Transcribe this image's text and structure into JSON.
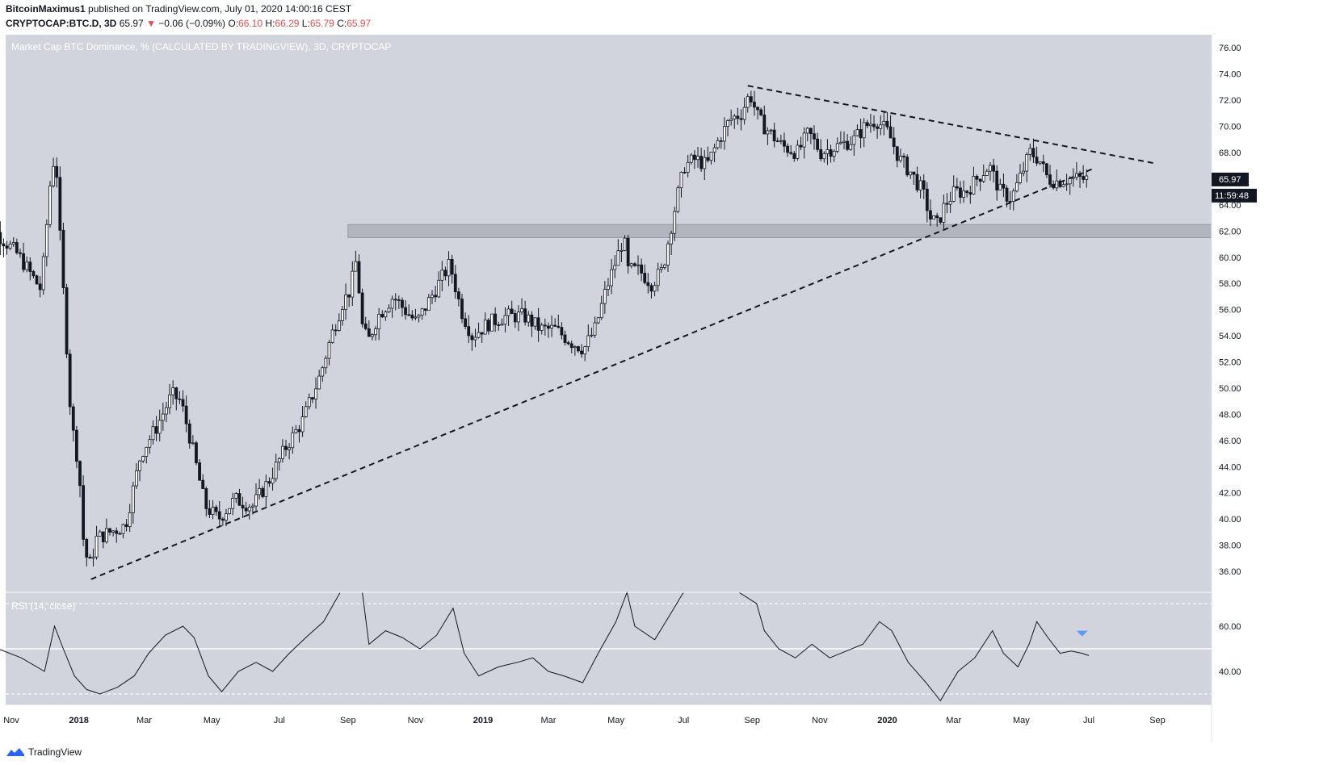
{
  "header": {
    "author": "BitcoinMaximus1",
    "published": "published on TradingView.com, July 01, 2020 14:00:16 CEST",
    "symbol": "CRYPTOCAP:BTC.D, 3D",
    "last": "65.97",
    "change": "−0.06 (−0.09%)",
    "o_label": "O:",
    "o_value": "66.10",
    "h_label": "H:",
    "h_value": "66.29",
    "l_label": "L:",
    "l_value": "65.79",
    "c_label": "C:",
    "c_value": "65.97"
  },
  "footer": {
    "brand": "TradingView"
  },
  "colors": {
    "pane_bg": "#d1d4dc",
    "zone": "#b2b5be",
    "candle": "#131722",
    "price_tag_bg": "#131722",
    "triangle_marker": "#5b9cf6"
  },
  "chart_data": {
    "type": "candlestick",
    "title": "Market Cap BTC Dominance, % (CALCULATED BY TRADINGVIEW), 3D, CRYPTOCAP",
    "ylim": [
      34.4,
      77
    ],
    "y_ticks": [
      "36.00",
      "38.00",
      "40.00",
      "42.00",
      "44.00",
      "46.00",
      "48.00",
      "50.00",
      "52.00",
      "54.00",
      "56.00",
      "58.00",
      "60.00",
      "62.00",
      "64.00",
      "66.00",
      "68.00",
      "70.00",
      "72.00",
      "74.00",
      "76.00"
    ],
    "x_ticks": [
      "Nov",
      "2018",
      "Mar",
      "May",
      "Jul",
      "Sep",
      "Nov",
      "2019",
      "Mar",
      "May",
      "Jul",
      "Sep",
      "Nov",
      "2020",
      "Mar",
      "May",
      "Jul",
      "Sep"
    ],
    "x_tick_dates": [
      "2017-11-01",
      "2018-01-01",
      "2018-03-01",
      "2018-05-01",
      "2018-07-01",
      "2018-09-01",
      "2018-11-01",
      "2019-01-01",
      "2019-03-01",
      "2019-05-01",
      "2019-07-01",
      "2019-09-01",
      "2019-11-01",
      "2020-01-01",
      "2020-03-01",
      "2020-05-01",
      "2020-07-01",
      "2020-09-01"
    ],
    "last_price_label": "65.97",
    "countdown_label": "11:59:48",
    "zone": {
      "from": 61.5,
      "to": 62.5,
      "start": "2018-09-01"
    },
    "trendlines": [
      {
        "name": "ascending support",
        "from": [
          "2018-01-12",
          35.4
        ],
        "to": [
          "2020-07-06",
          66.8
        ]
      },
      {
        "name": "descending resistance",
        "from": [
          "2019-08-28",
          73.1
        ],
        "to": [
          "2020-08-28",
          67.2
        ]
      }
    ],
    "price_series": [
      [
        "2017-10-01",
        63.5
      ],
      [
        "2017-10-20",
        62.0
      ],
      [
        "2017-11-10",
        60.2
      ],
      [
        "2017-12-01",
        57.5
      ],
      [
        "2017-12-06",
        62.5
      ],
      [
        "2017-12-10",
        66.5
      ],
      [
        "2017-12-14",
        68.0
      ],
      [
        "2017-12-18",
        61.5
      ],
      [
        "2017-12-22",
        56.0
      ],
      [
        "2017-12-28",
        47.5
      ],
      [
        "2018-01-04",
        44.0
      ],
      [
        "2018-01-08",
        38.5
      ],
      [
        "2018-01-13",
        36.2
      ],
      [
        "2018-01-20",
        38.5
      ],
      [
        "2018-02-01",
        39.0
      ],
      [
        "2018-02-15",
        39.5
      ],
      [
        "2018-03-01",
        45.0
      ],
      [
        "2018-03-15",
        47.0
      ],
      [
        "2018-03-29",
        49.5
      ],
      [
        "2018-04-06",
        49.0
      ],
      [
        "2018-04-15",
        46.0
      ],
      [
        "2018-04-28",
        41.0
      ],
      [
        "2018-05-10",
        40.0
      ],
      [
        "2018-05-25",
        41.5
      ],
      [
        "2018-06-10",
        41.0
      ],
      [
        "2018-06-25",
        43.0
      ],
      [
        "2018-07-10",
        45.5
      ],
      [
        "2018-07-25",
        47.5
      ],
      [
        "2018-08-10",
        51.0
      ],
      [
        "2018-08-20",
        54.0
      ],
      [
        "2018-08-30",
        56.5
      ],
      [
        "2018-09-06",
        57.5
      ],
      [
        "2018-09-12",
        60.0
      ],
      [
        "2018-09-16",
        55.0
      ],
      [
        "2018-09-22",
        53.5
      ],
      [
        "2018-10-01",
        55.5
      ],
      [
        "2018-10-15",
        57.0
      ],
      [
        "2018-10-25",
        56.0
      ],
      [
        "2018-11-05",
        55.0
      ],
      [
        "2018-11-15",
        56.5
      ],
      [
        "2018-11-25",
        58.0
      ],
      [
        "2018-12-05",
        59.5
      ],
      [
        "2018-12-15",
        56.0
      ],
      [
        "2018-12-25",
        54.0
      ],
      [
        "2019-01-10",
        55.0
      ],
      [
        "2019-01-25",
        55.5
      ],
      [
        "2019-02-10",
        55.5
      ],
      [
        "2019-02-25",
        54.5
      ],
      [
        "2019-03-10",
        54.5
      ],
      [
        "2019-03-25",
        53.5
      ],
      [
        "2019-04-05",
        53.0
      ],
      [
        "2019-04-15",
        54.5
      ],
      [
        "2019-04-25",
        57.5
      ],
      [
        "2019-05-05",
        60.0
      ],
      [
        "2019-05-11",
        61.5
      ],
      [
        "2019-05-15",
        59.0
      ],
      [
        "2019-05-25",
        59.0
      ],
      [
        "2019-06-05",
        58.0
      ],
      [
        "2019-06-15",
        59.0
      ],
      [
        "2019-06-22",
        62.0
      ],
      [
        "2019-06-28",
        64.5
      ],
      [
        "2019-07-05",
        67.0
      ],
      [
        "2019-07-15",
        67.5
      ],
      [
        "2019-07-25",
        67.0
      ],
      [
        "2019-08-05",
        69.0
      ],
      [
        "2019-08-15",
        70.5
      ],
      [
        "2019-08-25",
        71.0
      ],
      [
        "2019-09-02",
        72.5
      ],
      [
        "2019-09-10",
        70.5
      ],
      [
        "2019-09-20",
        69.5
      ],
      [
        "2019-10-01",
        68.5
      ],
      [
        "2019-10-15",
        68.0
      ],
      [
        "2019-10-25",
        69.5
      ],
      [
        "2019-11-05",
        68.0
      ],
      [
        "2019-11-20",
        68.5
      ],
      [
        "2019-12-05",
        69.0
      ],
      [
        "2019-12-15",
        70.0
      ],
      [
        "2019-12-25",
        70.5
      ],
      [
        "2020-01-05",
        69.5
      ],
      [
        "2020-01-15",
        67.5
      ],
      [
        "2020-01-25",
        66.5
      ],
      [
        "2020-02-05",
        65.0
      ],
      [
        "2020-02-12",
        63.0
      ],
      [
        "2020-02-18",
        62.5
      ],
      [
        "2020-02-25",
        64.0
      ],
      [
        "2020-03-05",
        65.0
      ],
      [
        "2020-03-15",
        65.0
      ],
      [
        "2020-03-25",
        66.0
      ],
      [
        "2020-04-05",
        67.0
      ],
      [
        "2020-04-15",
        65.0
      ],
      [
        "2020-04-25",
        64.5
      ],
      [
        "2020-05-05",
        66.5
      ],
      [
        "2020-05-12",
        68.0
      ],
      [
        "2020-05-20",
        67.5
      ],
      [
        "2020-05-28",
        66.0
      ],
      [
        "2020-06-05",
        65.8
      ],
      [
        "2020-06-15",
        66.0
      ],
      [
        "2020-06-25",
        66.0
      ],
      [
        "2020-07-01",
        65.97
      ]
    ],
    "indicator": {
      "label": "RSI (14, close)",
      "ylim": [
        25,
        75
      ],
      "y_ticks": [
        "40.00",
        "60.00"
      ],
      "levels": [
        70,
        50,
        30
      ],
      "series": [
        [
          "2017-10-01",
          55
        ],
        [
          "2017-10-20",
          50
        ],
        [
          "2017-11-10",
          46
        ],
        [
          "2017-12-01",
          40
        ],
        [
          "2017-12-10",
          60
        ],
        [
          "2017-12-18",
          50
        ],
        [
          "2017-12-28",
          38
        ],
        [
          "2018-01-08",
          32
        ],
        [
          "2018-01-20",
          30
        ],
        [
          "2018-02-05",
          33
        ],
        [
          "2018-02-20",
          38
        ],
        [
          "2018-03-05",
          48
        ],
        [
          "2018-03-20",
          56
        ],
        [
          "2018-04-05",
          60
        ],
        [
          "2018-04-15",
          55
        ],
        [
          "2018-04-28",
          38
        ],
        [
          "2018-05-10",
          31
        ],
        [
          "2018-05-25",
          40
        ],
        [
          "2018-06-10",
          44
        ],
        [
          "2018-06-25",
          40
        ],
        [
          "2018-07-10",
          48
        ],
        [
          "2018-07-25",
          55
        ],
        [
          "2018-08-10",
          62
        ],
        [
          "2018-08-25",
          75
        ],
        [
          "2018-09-14",
          75
        ],
        [
          "2018-09-20",
          52
        ],
        [
          "2018-10-05",
          58
        ],
        [
          "2018-10-20",
          55
        ],
        [
          "2018-11-05",
          50
        ],
        [
          "2018-11-20",
          56
        ],
        [
          "2018-12-05",
          68
        ],
        [
          "2018-12-15",
          48
        ],
        [
          "2018-12-28",
          38
        ],
        [
          "2019-01-15",
          42
        ],
        [
          "2019-02-01",
          44
        ],
        [
          "2019-02-15",
          46
        ],
        [
          "2019-03-01",
          40
        ],
        [
          "2019-03-15",
          38
        ],
        [
          "2019-04-01",
          35
        ],
        [
          "2019-04-15",
          48
        ],
        [
          "2019-05-01",
          62
        ],
        [
          "2019-05-11",
          75
        ],
        [
          "2019-05-18",
          60
        ],
        [
          "2019-06-05",
          54
        ],
        [
          "2019-06-20",
          66
        ],
        [
          "2019-07-01",
          75
        ],
        [
          "2019-08-20",
          75
        ],
        [
          "2019-09-05",
          70
        ],
        [
          "2019-09-12",
          58
        ],
        [
          "2019-09-25",
          50
        ],
        [
          "2019-10-10",
          46
        ],
        [
          "2019-10-25",
          52
        ],
        [
          "2019-11-10",
          46
        ],
        [
          "2019-11-25",
          49
        ],
        [
          "2019-12-10",
          52
        ],
        [
          "2019-12-25",
          62
        ],
        [
          "2020-01-05",
          58
        ],
        [
          "2020-01-20",
          44
        ],
        [
          "2020-02-05",
          35
        ],
        [
          "2020-02-18",
          27
        ],
        [
          "2020-03-05",
          40
        ],
        [
          "2020-03-20",
          46
        ],
        [
          "2020-04-05",
          58
        ],
        [
          "2020-04-15",
          48
        ],
        [
          "2020-04-28",
          42
        ],
        [
          "2020-05-08",
          52
        ],
        [
          "2020-05-15",
          62
        ],
        [
          "2020-05-25",
          55
        ],
        [
          "2020-06-05",
          48
        ],
        [
          "2020-06-15",
          49
        ],
        [
          "2020-06-25",
          48
        ],
        [
          "2020-07-01",
          47
        ]
      ]
    }
  }
}
